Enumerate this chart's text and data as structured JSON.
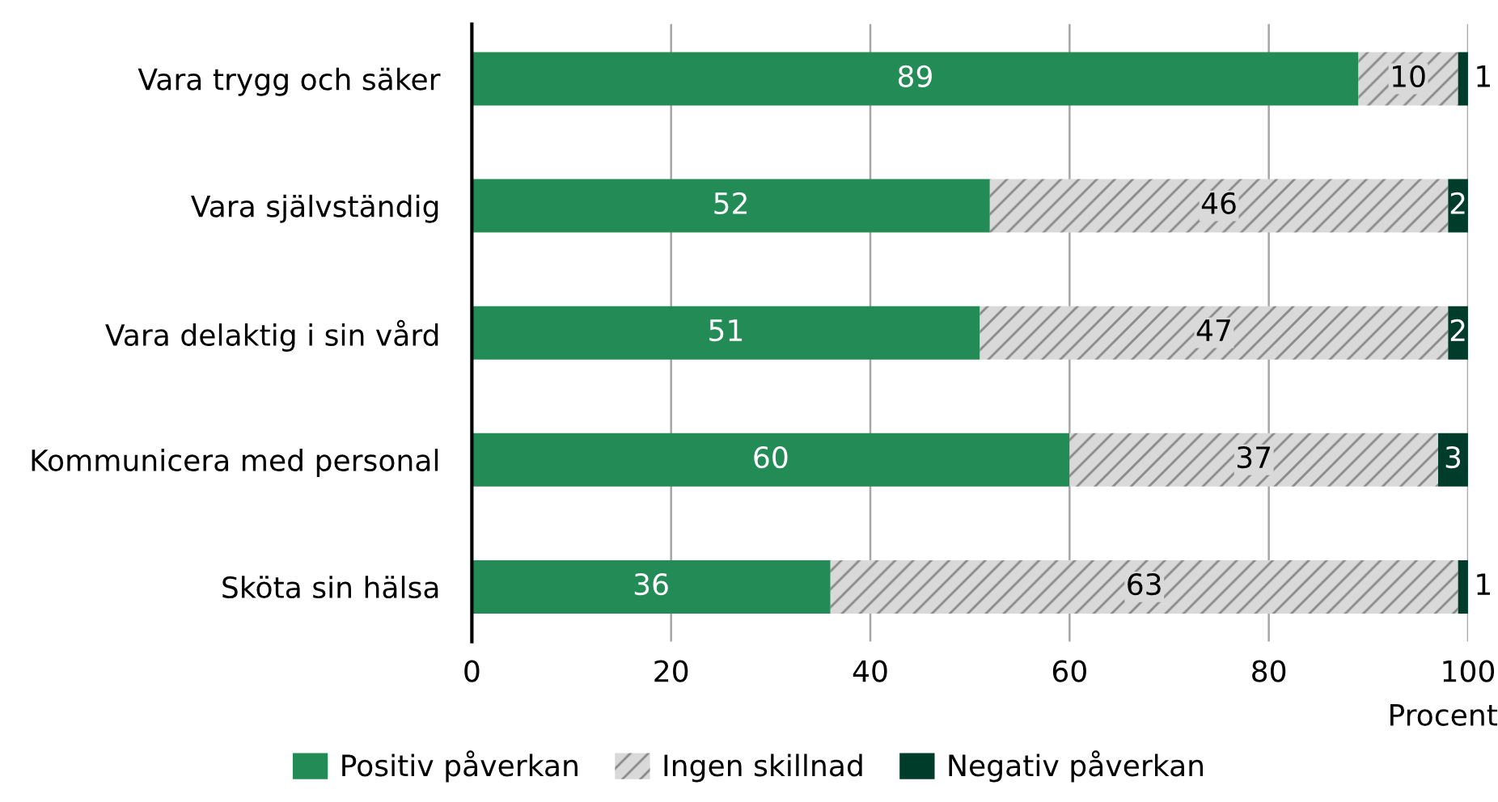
{
  "chart_data": {
    "type": "bar",
    "orientation": "horizontal",
    "stacked": true,
    "categories": [
      "Vara trygg och säker",
      "Vara självständig",
      "Vara delaktig i sin vård",
      "Kommunicera med personal",
      "Sköta sin hälsa"
    ],
    "series": [
      {
        "name": "Positiv påverkan",
        "color": "#238b55",
        "values": [
          89,
          52,
          51,
          60,
          36
        ]
      },
      {
        "name": "Ingen skillnad",
        "color": "#d9d9d9",
        "values": [
          10,
          46,
          47,
          37,
          63
        ]
      },
      {
        "name": "Negativ påverkan",
        "color": "#003c2a",
        "values": [
          1,
          2,
          2,
          3,
          1
        ]
      }
    ],
    "xlim": [
      0,
      100
    ],
    "xticks": [
      0,
      20,
      40,
      60,
      80,
      100
    ],
    "xlabel": "Procent",
    "grid": "x",
    "legend": "bottom",
    "data_labels": true
  }
}
